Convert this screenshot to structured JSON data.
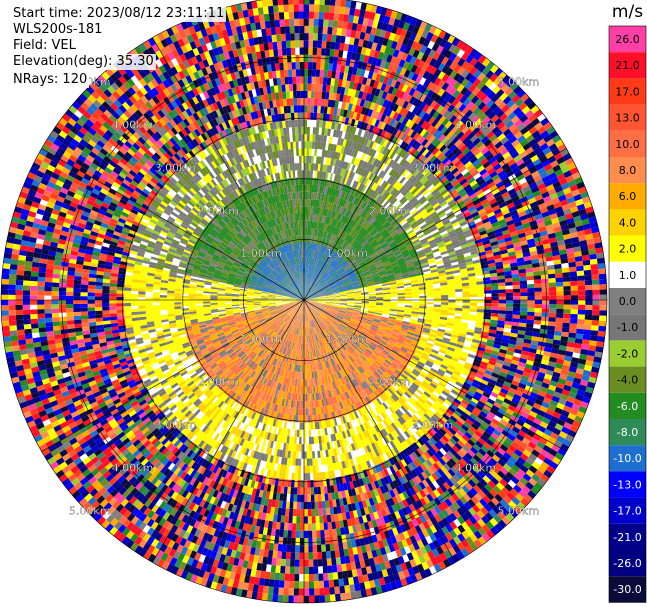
{
  "header": {
    "start_time": "Start time: 2023/08/12 23:11:11",
    "instrument": "WLS200s-181",
    "field": "Field: VEL",
    "elevation": "Elevation(deg): 35.30",
    "nrays": "NRays: 120"
  },
  "colorbar": {
    "unit": "m/s",
    "ticks": [
      "26.0",
      "21.0",
      "17.0",
      "13.0",
      "10.0",
      "8.0",
      "6.0",
      "4.0",
      "2.0",
      "1.0",
      "0.0",
      "-1.0",
      "-2.0",
      "-4.0",
      "-6.0",
      "-8.0",
      "-10.0",
      "-13.0",
      "-17.0",
      "-21.0",
      "-26.0",
      "-30.0"
    ],
    "colors": [
      "#ff3fa6",
      "#ff0f28",
      "#ff3b1a",
      "#ff5533",
      "#ff6f45",
      "#ff8e4e",
      "#ffab00",
      "#ffd300",
      "#ffff00",
      "#ffffff",
      "#808080",
      "#777777",
      "#9acd32",
      "#6b8e23",
      "#228b22",
      "#2e8b57",
      "#1e6fd0",
      "#0000ff",
      "#0000cd",
      "#00008b",
      "#000080",
      "#0b0b3b"
    ]
  },
  "chart_data": {
    "type": "polar-ppi",
    "field": "VEL",
    "units": "m/s",
    "range_rings_km": [
      1.0,
      2.0,
      3.0,
      4.0,
      5.0
    ],
    "ring_labels": [
      "1.00km",
      "2.00km",
      "3.00km",
      "4.00km",
      "5.00km"
    ],
    "nrays": 120,
    "elevation_deg": 35.3,
    "zones": [
      {
        "region": "north",
        "range_km": [
          0,
          1.0
        ],
        "velocity_ms": -10.0
      },
      {
        "region": "north",
        "range_km": [
          1.0,
          2.0
        ],
        "velocity_ms": -6.0
      },
      {
        "region": "south",
        "range_km": [
          0,
          2.0
        ],
        "velocity_ms": 8.0
      },
      {
        "region": "east-west",
        "range_km": [
          1.0,
          2.5
        ],
        "velocity_ms": 2.0
      },
      {
        "region": "all",
        "range_km": [
          3.0,
          5.0
        ],
        "velocity_ms": "noise"
      }
    ]
  }
}
